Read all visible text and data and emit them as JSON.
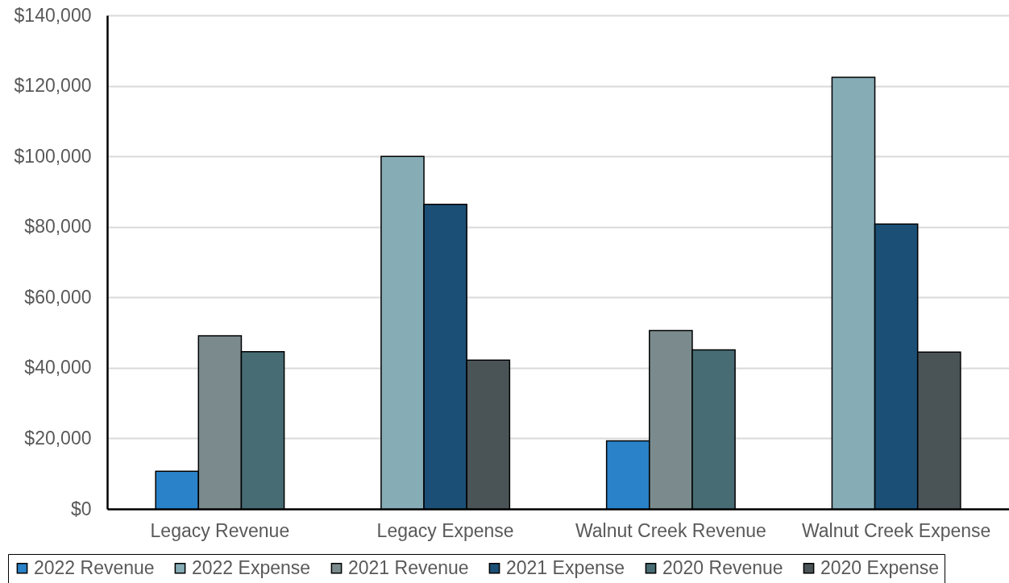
{
  "chart_data": {
    "type": "bar",
    "categories": [
      "Legacy Revenue",
      "Legacy Expense",
      "Walnut Creek Revenue",
      "Walnut Creek Expense"
    ],
    "series": [
      {
        "name": "2022 Revenue",
        "color": "#2a82c8",
        "values": [
          10700,
          null,
          19300,
          null
        ]
      },
      {
        "name": "2022 Expense",
        "color": "#86acb6",
        "values": [
          null,
          100000,
          null,
          122400
        ]
      },
      {
        "name": "2021 Revenue",
        "color": "#7b8b8d",
        "values": [
          49100,
          null,
          50600,
          null
        ]
      },
      {
        "name": "2021 Expense",
        "color": "#1b4f75",
        "values": [
          null,
          86400,
          null,
          80800
        ]
      },
      {
        "name": "2020 Revenue",
        "color": "#476c74",
        "values": [
          44600,
          null,
          45100,
          null
        ]
      },
      {
        "name": "2020 Expense",
        "color": "#4a5456",
        "values": [
          null,
          42200,
          null,
          44500
        ]
      }
    ],
    "ylim": [
      0,
      140000
    ],
    "yticks": [
      {
        "value": 0,
        "label": "$0"
      },
      {
        "value": 20000,
        "label": "$20,000"
      },
      {
        "value": 40000,
        "label": "$40,000"
      },
      {
        "value": 60000,
        "label": "$60,000"
      },
      {
        "value": 80000,
        "label": "$80,000"
      },
      {
        "value": 100000,
        "label": "$100,000"
      },
      {
        "value": 120000,
        "label": "$120,000"
      },
      {
        "value": 140000,
        "label": "$140,000"
      }
    ],
    "grid": "y",
    "legend": "bottom"
  }
}
